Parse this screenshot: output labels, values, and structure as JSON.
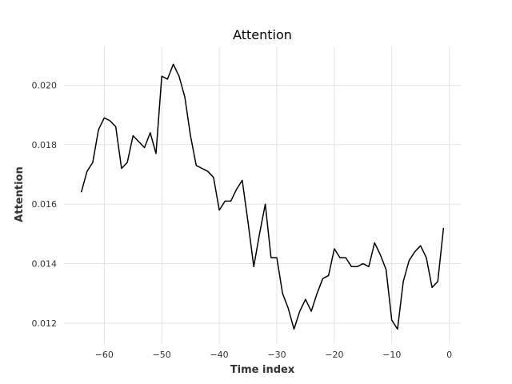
{
  "chart_data": {
    "type": "line",
    "title": "Attention",
    "xlabel": "Time index",
    "ylabel": "Attention",
    "xlim": [
      -67,
      2
    ],
    "ylim": [
      0.0113,
      0.0213
    ],
    "grid": true,
    "line_color": "#000000",
    "grid_color": "#dddddd",
    "x_ticks": [
      -60,
      -50,
      -40,
      -30,
      -20,
      -10,
      0
    ],
    "x_tick_labels": [
      "−60",
      "−50",
      "−40",
      "−30",
      "−20",
      "−10",
      "0"
    ],
    "y_ticks": [
      0.012,
      0.014,
      0.016,
      0.018,
      0.02
    ],
    "y_tick_labels": [
      "0.012",
      "0.014",
      "0.016",
      "0.018",
      "0.020"
    ],
    "series": [
      {
        "x": [
          -64,
          -63,
          -62,
          -61,
          -60,
          -59,
          -58,
          -57,
          -56,
          -55,
          -54,
          -53,
          -52,
          -51,
          -50,
          -49,
          -48,
          -47,
          -46,
          -45,
          -44,
          -43,
          -42,
          -41,
          -40,
          -39,
          -38,
          -37,
          -36,
          -35,
          -34,
          -33,
          -32,
          -31,
          -30,
          -29,
          -28,
          -27,
          -26,
          -25,
          -24,
          -23,
          -22,
          -21,
          -20,
          -19,
          -18,
          -17,
          -16,
          -15,
          -14,
          -13,
          -12,
          -11,
          -10,
          -9,
          -8,
          -7,
          -6,
          -5,
          -4,
          -3,
          -2,
          -1
        ],
        "y": [
          0.0164,
          0.0171,
          0.0174,
          0.0185,
          0.0189,
          0.0188,
          0.0186,
          0.0172,
          0.0174,
          0.0183,
          0.0181,
          0.0179,
          0.0184,
          0.0177,
          0.0203,
          0.0202,
          0.0207,
          0.0203,
          0.0196,
          0.0183,
          0.0173,
          0.0172,
          0.0171,
          0.0169,
          0.0158,
          0.0161,
          0.0161,
          0.0165,
          0.0168,
          0.0154,
          0.0139,
          0.015,
          0.016,
          0.0142,
          0.0142,
          0.013,
          0.0125,
          0.0118,
          0.0124,
          0.0128,
          0.0124,
          0.013,
          0.0135,
          0.0136,
          0.0145,
          0.0142,
          0.0142,
          0.0139,
          0.0139,
          0.014,
          0.0139,
          0.0147,
          0.0143,
          0.0138,
          0.0121,
          0.0118,
          0.0134,
          0.0141,
          0.0144,
          0.0146,
          0.0142,
          0.0132,
          0.0134,
          0.0152
        ]
      }
    ]
  }
}
